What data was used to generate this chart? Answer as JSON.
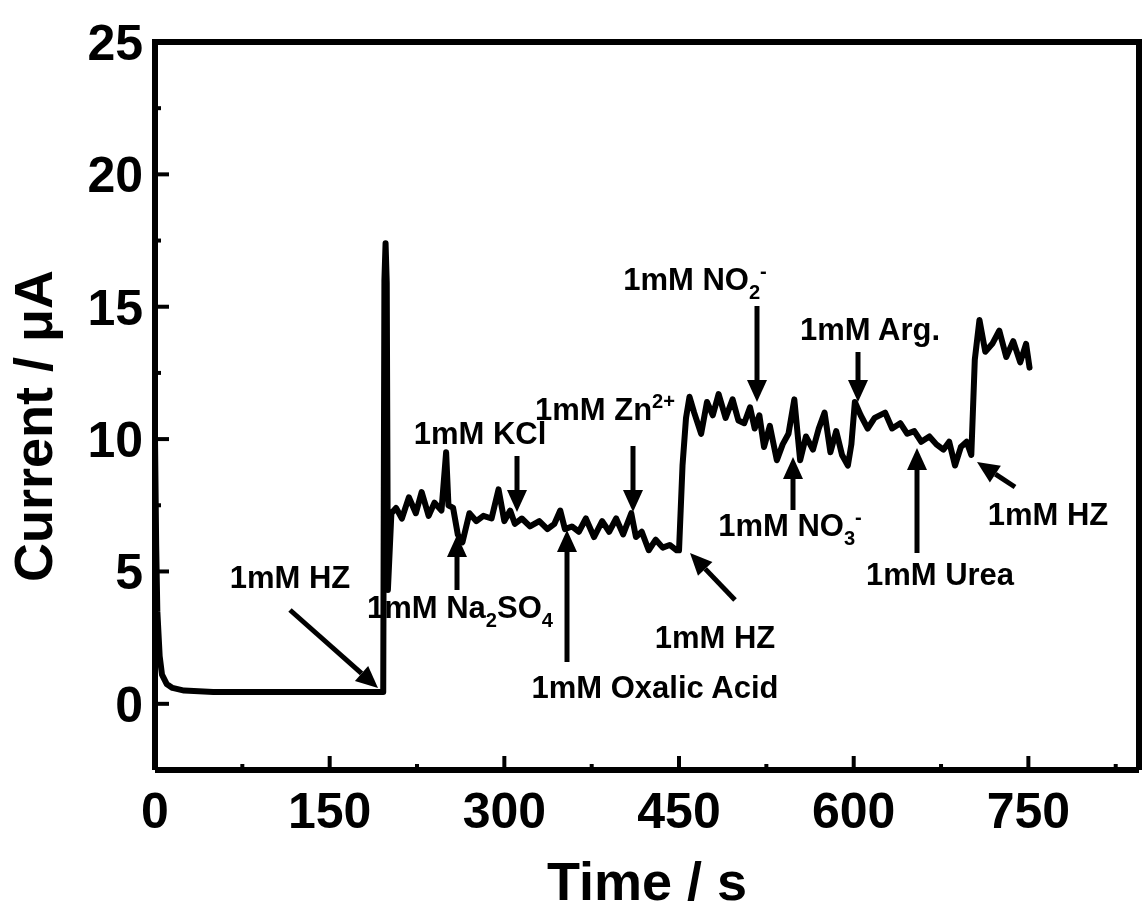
{
  "chart_data": {
    "type": "line",
    "xlabel": "Time / s",
    "ylabel": "Current / μA",
    "x": [
      0,
      1,
      2,
      4,
      6,
      10,
      15,
      25,
      50,
      100,
      150,
      196,
      197,
      198,
      199,
      200,
      203,
      207,
      212,
      218,
      224,
      229,
      235,
      240,
      246,
      250,
      252,
      256,
      260,
      264,
      270,
      276,
      282,
      289,
      295,
      300,
      305,
      309,
      315,
      322,
      330,
      337,
      343,
      348,
      352,
      358,
      364,
      370,
      377,
      384,
      390,
      396,
      402,
      409,
      413,
      418,
      424,
      430,
      436,
      442,
      448,
      450,
      453,
      456,
      459,
      463,
      469,
      474,
      479,
      484,
      490,
      496,
      501,
      506,
      511,
      515,
      519,
      523,
      528,
      534,
      539,
      544,
      549,
      554,
      559,
      565,
      570,
      575,
      580,
      585,
      590,
      595,
      598,
      601,
      606,
      612,
      618,
      627,
      633,
      640,
      646,
      652,
      658,
      665,
      671,
      677,
      682,
      687,
      692,
      697,
      701,
      704,
      708,
      713,
      719,
      725,
      731,
      737,
      743,
      748,
      751
    ],
    "series": [
      {
        "color": "#000000",
        "values": [
          10,
          6,
          3.5,
          1.8,
          1.1,
          0.75,
          0.6,
          0.5,
          0.45,
          0.45,
          0.45,
          0.45,
          16,
          17.4,
          15.9,
          4.3,
          7.2,
          7.4,
          7.0,
          7.8,
          7.2,
          8.0,
          7.1,
          7.6,
          7.3,
          9.5,
          7.5,
          7.4,
          6.4,
          6.1,
          7.2,
          6.9,
          7.1,
          7.0,
          8.1,
          6.9,
          7.3,
          6.8,
          7.0,
          6.7,
          6.9,
          6.6,
          6.8,
          7.3,
          6.6,
          6.7,
          6.5,
          7.0,
          6.3,
          6.9,
          6.5,
          7.0,
          6.4,
          7.2,
          6.3,
          6.5,
          5.8,
          6.2,
          5.9,
          6.0,
          5.8,
          5.8,
          9.0,
          10.8,
          11.6,
          11.0,
          10.2,
          11.4,
          10.9,
          11.7,
          10.8,
          11.5,
          10.7,
          10.6,
          11.2,
          10.4,
          10.9,
          9.7,
          10.5,
          9.2,
          9.8,
          10.2,
          11.5,
          9.2,
          10.1,
          9.6,
          10.4,
          11.0,
          9.5,
          10.3,
          9.4,
          9.0,
          9.8,
          11.4,
          10.9,
          10.4,
          10.8,
          11.0,
          10.4,
          10.6,
          10.2,
          10.3,
          9.9,
          10.1,
          9.8,
          9.6,
          9.9,
          9.0,
          9.7,
          9.9,
          9.4,
          13.0,
          14.5,
          13.3,
          13.6,
          14.1,
          13.1,
          13.7,
          12.9,
          13.6,
          12.7
        ]
      }
    ],
    "xlim": [
      0,
      845
    ],
    "ylim": [
      -2.5,
      25
    ],
    "xticks": [
      0,
      {
        "value": 75,
        "label": null
      },
      150,
      {
        "value": 225,
        "label": null
      },
      300,
      {
        "value": 375,
        "label": null
      },
      450,
      {
        "value": 525,
        "label": null
      },
      600,
      {
        "value": 675,
        "label": null
      },
      750,
      {
        "value": 825,
        "label": null
      }
    ],
    "yticks": [
      {
        "value": -2.5,
        "label": null
      },
      0,
      {
        "value": 2.5,
        "label": null
      },
      5,
      {
        "value": 7.5,
        "label": null
      },
      10,
      {
        "value": 12.5,
        "label": null
      },
      15,
      {
        "value": 17.5,
        "label": null
      },
      20,
      {
        "value": 22.5,
        "label": null
      },
      25
    ],
    "marker": "none",
    "line_style": "solid",
    "annotations": [
      "1mM HZ",
      "1mM Na$_{2}$SO$_{4}$",
      "1mM KCl",
      "1mM Oxalic Acid",
      "1mM Zn$^{2+}$",
      "1mM HZ",
      "1mM NO$_{2}$$^{-}$",
      "1mM NO$_{3}$$^{-}$",
      "1mM Arg.",
      "1mM Urea",
      "1mM HZ"
    ]
  }
}
